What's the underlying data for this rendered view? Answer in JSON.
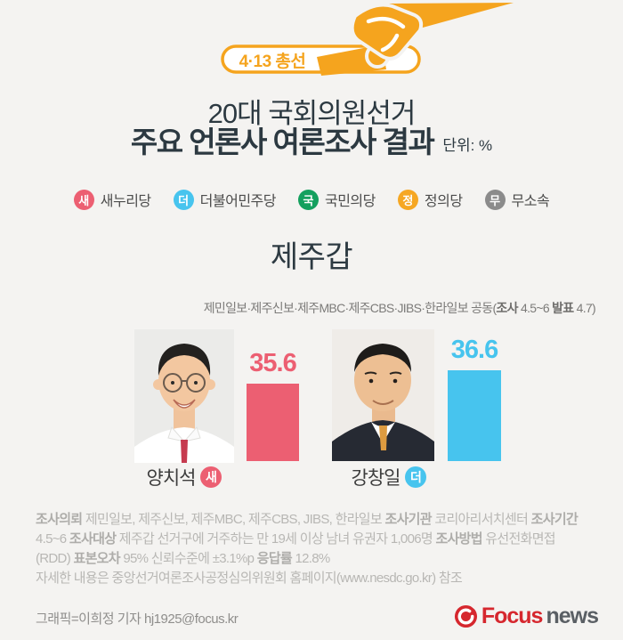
{
  "header": {
    "badge": "4·13 총선",
    "title_line1": "20대 국회의원선거",
    "title_line2": "주요 언론사 여론조사 결과",
    "unit": "단위: %",
    "accent_color": "#f5a41e"
  },
  "legend": {
    "items": [
      {
        "abbr": "새",
        "name": "새누리당",
        "color": "#ec5f72"
      },
      {
        "abbr": "더",
        "name": "더불어민주당",
        "color": "#47c4ee"
      },
      {
        "abbr": "국",
        "name": "국민의당",
        "color": "#14a05e"
      },
      {
        "abbr": "정",
        "name": "정의당",
        "color": "#f6a723"
      },
      {
        "abbr": "무",
        "name": "무소속",
        "color": "#8b8b8b"
      }
    ]
  },
  "chart_data": {
    "type": "bar",
    "title": "제주갑",
    "unit": "%",
    "ylim": [
      30,
      40
    ],
    "legend_position": "none",
    "grid": false,
    "source_segments": {
      "t0": "제민일보·제주신보·제주MBC·제주CBS·JIBS·한라일보 공동(",
      "b1": "조사",
      "t1": " 4.5~6 ",
      "b2": "발표",
      "t2": " 4.7)"
    },
    "candidates": [
      {
        "name": "양치석",
        "party_abbr": "새",
        "value": 35.6,
        "value_label": "35.6",
        "color": "#ec5f72"
      },
      {
        "name": "강창일",
        "party_abbr": "더",
        "value": 36.6,
        "value_label": "36.6",
        "color": "#47c4ee"
      }
    ]
  },
  "survey": {
    "line1": {
      "b1": "조사의뢰",
      "t1": " 제민일보, 제주신보, 제주MBC, 제주CBS, JIBS, 한라일보 ",
      "b2": "조사기관",
      "t2": " 코리아리서치센터 ",
      "b3": "조사기간"
    },
    "line2": {
      "t0": "4.5~6 ",
      "b1": "조사대상",
      "t1": " 제주갑 선거구에 거주하는 만 19세 이상 남녀 유권자 1,006명 ",
      "b2": "조사방법",
      "t2": " 유선전화면접"
    },
    "line3": {
      "t0": "(RDD) ",
      "b1": "표본오차",
      "t1": " 95% 신뢰수준에 ±3.1%p ",
      "b2": "응답률",
      "t2": " 12.8%"
    },
    "line4": "자세한 내용은 중앙선거여론조사공정심의위원회 홈페이지(www.nesdc.go.kr) 참조"
  },
  "credit": "그래픽=이희정 기자 hj1925@focus.kr",
  "logo": {
    "focus": "Focus",
    "news": "news"
  }
}
